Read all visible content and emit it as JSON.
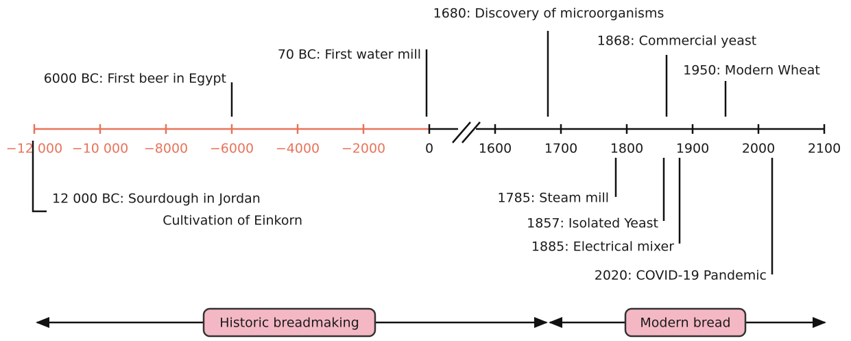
{
  "axis": {
    "historic_ticks": [
      "−12 000",
      "−10 000",
      "−8000",
      "−6000",
      "−4000",
      "−2000",
      "0"
    ],
    "modern_ticks": [
      "1600",
      "1700",
      "1800",
      "1900",
      "2000",
      "2100"
    ]
  },
  "events_above": [
    {
      "label": "6000 BC: First beer in Egypt"
    },
    {
      "label": "70 BC: First water mill"
    },
    {
      "label": "1680: Discovery of microorganisms"
    },
    {
      "label": "1868: Commercial yeast"
    },
    {
      "label": "1950: Modern Wheat"
    }
  ],
  "events_below": [
    {
      "label": "12 000 BC: Sourdough in Jordan",
      "label2": "Cultivation of Einkorn"
    },
    {
      "label": "1785: Steam mill"
    },
    {
      "label": "1857: Isolated Yeast"
    },
    {
      "label": "1885: Electrical mixer"
    },
    {
      "label": "2020: COVID-19 Pandemic"
    }
  ],
  "eras": [
    {
      "label": "Historic breadmaking"
    },
    {
      "label": "Modern bread"
    }
  ]
}
